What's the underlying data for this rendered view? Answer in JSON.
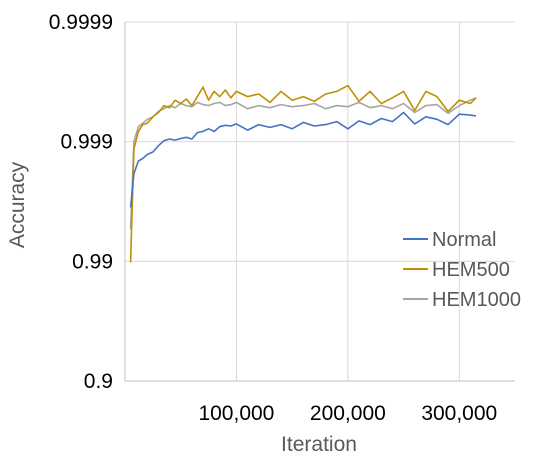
{
  "chart_data": {
    "type": "line",
    "title": "",
    "xlabel": "Iteration",
    "ylabel": "Accuracy",
    "x_scale": "linear",
    "y_scale": "log-nines",
    "xlim": [
      0,
      350000
    ],
    "ylim": [
      0.9,
      0.9999
    ],
    "x_ticks": [
      100000,
      200000,
      300000
    ],
    "x_tick_labels": [
      "100,000",
      "200,000",
      "300,000"
    ],
    "y_ticks": [
      0.9,
      0.99,
      0.999,
      0.9999
    ],
    "y_tick_labels": [
      "0.9",
      "0.99",
      "0.999",
      "0.9999"
    ],
    "grid": true,
    "legend_position": "right",
    "series": [
      {
        "name": "Normal",
        "color": "#4472c4",
        "x": [
          5000,
          8000,
          12000,
          16000,
          20000,
          25000,
          30000,
          35000,
          40000,
          45000,
          50000,
          55000,
          60000,
          65000,
          70000,
          75000,
          80000,
          85000,
          90000,
          95000,
          100000,
          110000,
          120000,
          130000,
          140000,
          150000,
          160000,
          170000,
          180000,
          190000,
          200000,
          210000,
          220000,
          230000,
          240000,
          250000,
          260000,
          270000,
          280000,
          290000,
          300000,
          310000,
          315000
        ],
        "y": [
          0.99645,
          0.99815,
          0.99855,
          0.99862,
          0.99872,
          0.99878,
          0.99892,
          0.99902,
          0.99905,
          0.99903,
          0.99906,
          0.99908,
          0.99905,
          0.99916,
          0.99918,
          0.99922,
          0.99918,
          0.99925,
          0.99927,
          0.99926,
          0.99929,
          0.9992,
          0.99928,
          0.99924,
          0.99928,
          0.99922,
          0.99931,
          0.99926,
          0.99928,
          0.99932,
          0.99922,
          0.99933,
          0.99928,
          0.99936,
          0.99932,
          0.99943,
          0.99929,
          0.99938,
          0.99935,
          0.99928,
          0.99941,
          0.9994,
          0.99939
        ]
      },
      {
        "name": "HEM500",
        "color": "#bf9000",
        "x": [
          5000,
          8000,
          12000,
          16000,
          20000,
          25000,
          30000,
          35000,
          40000,
          45000,
          50000,
          55000,
          60000,
          65000,
          70000,
          75000,
          80000,
          85000,
          90000,
          95000,
          100000,
          110000,
          120000,
          130000,
          140000,
          150000,
          160000,
          170000,
          180000,
          190000,
          200000,
          210000,
          220000,
          230000,
          240000,
          250000,
          260000,
          270000,
          280000,
          290000,
          300000,
          310000,
          315000
        ],
        "y": [
          0.9898,
          0.99885,
          0.99918,
          0.99928,
          0.9993,
          0.99938,
          0.99943,
          0.9995,
          0.99948,
          0.99955,
          0.99952,
          0.99956,
          0.9995,
          0.99958,
          0.99965,
          0.99955,
          0.99962,
          0.99958,
          0.99963,
          0.99957,
          0.99962,
          0.99958,
          0.9996,
          0.99953,
          0.99962,
          0.99955,
          0.99958,
          0.99954,
          0.9996,
          0.99962,
          0.99966,
          0.99954,
          0.99962,
          0.99952,
          0.99957,
          0.99962,
          0.99945,
          0.99962,
          0.99958,
          0.99944,
          0.99955,
          0.99952,
          0.99957
        ]
      },
      {
        "name": "HEM1000",
        "color": "#a5a5a5",
        "x": [
          5000,
          8000,
          12000,
          16000,
          20000,
          25000,
          30000,
          35000,
          40000,
          45000,
          50000,
          55000,
          60000,
          65000,
          70000,
          75000,
          80000,
          85000,
          90000,
          95000,
          100000,
          110000,
          120000,
          130000,
          140000,
          150000,
          160000,
          170000,
          180000,
          190000,
          200000,
          210000,
          220000,
          230000,
          240000,
          250000,
          260000,
          270000,
          280000,
          290000,
          300000,
          310000,
          315000
        ],
        "y": [
          0.9946,
          0.999,
          0.99925,
          0.9993,
          0.99935,
          0.99938,
          0.99944,
          0.99947,
          0.9995,
          0.99948,
          0.99952,
          0.9995,
          0.99949,
          0.99953,
          0.99951,
          0.9995,
          0.99952,
          0.99953,
          0.9995,
          0.99951,
          0.99953,
          0.99947,
          0.9995,
          0.99948,
          0.99951,
          0.99949,
          0.9995,
          0.99952,
          0.99947,
          0.9995,
          0.99949,
          0.99953,
          0.99948,
          0.9995,
          0.99947,
          0.99952,
          0.99943,
          0.9995,
          0.99951,
          0.99942,
          0.9995,
          0.99955,
          0.99957
        ]
      }
    ]
  }
}
